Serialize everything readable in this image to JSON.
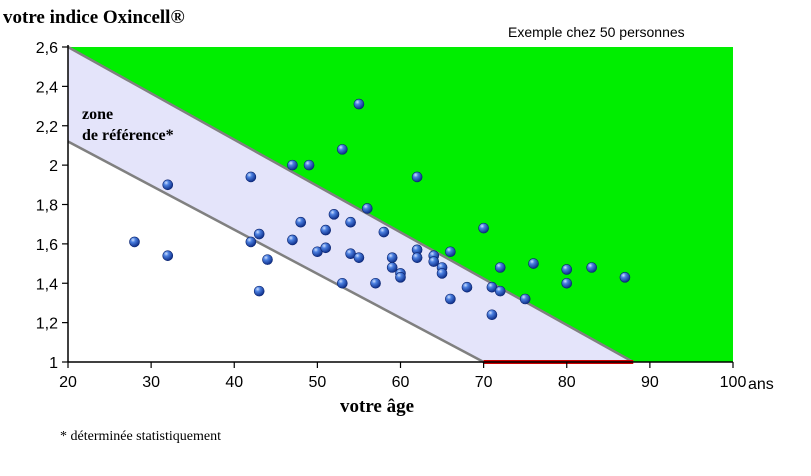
{
  "chart_data": {
    "type": "scatter",
    "title": "votre indice Oxincell®",
    "subtitle": "Exemple chez 50 personnes",
    "xlabel": "votre âge",
    "xunit": "ans",
    "footnote": "* déterminée statistiquement",
    "zone_label_line1": "zone",
    "zone_label_line2": "de référence*",
    "xlim": [
      20,
      100
    ],
    "ylim": [
      1,
      2.6
    ],
    "x_ticks": [
      20,
      30,
      40,
      50,
      60,
      70,
      80,
      90,
      100
    ],
    "y_ticks": [
      "1",
      "1,2",
      "1,4",
      "1,6",
      "1,8",
      "2",
      "2,2",
      "2,4",
      "2,6"
    ],
    "colors": {
      "above_zone": "#00ee00",
      "reference_zone": "#e4e4fa",
      "boundary": "#808080",
      "highlight": "#cc0000",
      "point": "#1f4fbf"
    },
    "reference_zone": {
      "upper_line": [
        [
          20,
          2.6
        ],
        [
          88,
          1.0
        ]
      ],
      "lower_line": [
        [
          20,
          2.12
        ],
        [
          70,
          1.0
        ]
      ]
    },
    "highlight_segment": [
      [
        70,
        1.0
      ],
      [
        88,
        1.0
      ]
    ],
    "points": [
      [
        28,
        1.61
      ],
      [
        32,
        1.9
      ],
      [
        32,
        1.54
      ],
      [
        42,
        1.94
      ],
      [
        42,
        1.61
      ],
      [
        43,
        1.65
      ],
      [
        43,
        1.36
      ],
      [
        44,
        1.52
      ],
      [
        47,
        2.0
      ],
      [
        47,
        1.62
      ],
      [
        48,
        1.71
      ],
      [
        49,
        2.0
      ],
      [
        50,
        1.56
      ],
      [
        51,
        1.58
      ],
      [
        51,
        1.67
      ],
      [
        52,
        1.75
      ],
      [
        53,
        2.08
      ],
      [
        53,
        1.4
      ],
      [
        54,
        1.71
      ],
      [
        54,
        1.55
      ],
      [
        55,
        2.31
      ],
      [
        55,
        1.53
      ],
      [
        56,
        1.78
      ],
      [
        57,
        1.4
      ],
      [
        58,
        1.66
      ],
      [
        59,
        1.53
      ],
      [
        59,
        1.48
      ],
      [
        60,
        1.45
      ],
      [
        60,
        1.43
      ],
      [
        62,
        1.94
      ],
      [
        62,
        1.57
      ],
      [
        62,
        1.53
      ],
      [
        64,
        1.54
      ],
      [
        64,
        1.51
      ],
      [
        65,
        1.48
      ],
      [
        65,
        1.45
      ],
      [
        66,
        1.56
      ],
      [
        66,
        1.32
      ],
      [
        68,
        1.38
      ],
      [
        70,
        1.68
      ],
      [
        71,
        1.38
      ],
      [
        71,
        1.24
      ],
      [
        72,
        1.48
      ],
      [
        72,
        1.36
      ],
      [
        75,
        1.32
      ],
      [
        76,
        1.5
      ],
      [
        80,
        1.47
      ],
      [
        80,
        1.4
      ],
      [
        83,
        1.48
      ],
      [
        87,
        1.43
      ]
    ]
  }
}
